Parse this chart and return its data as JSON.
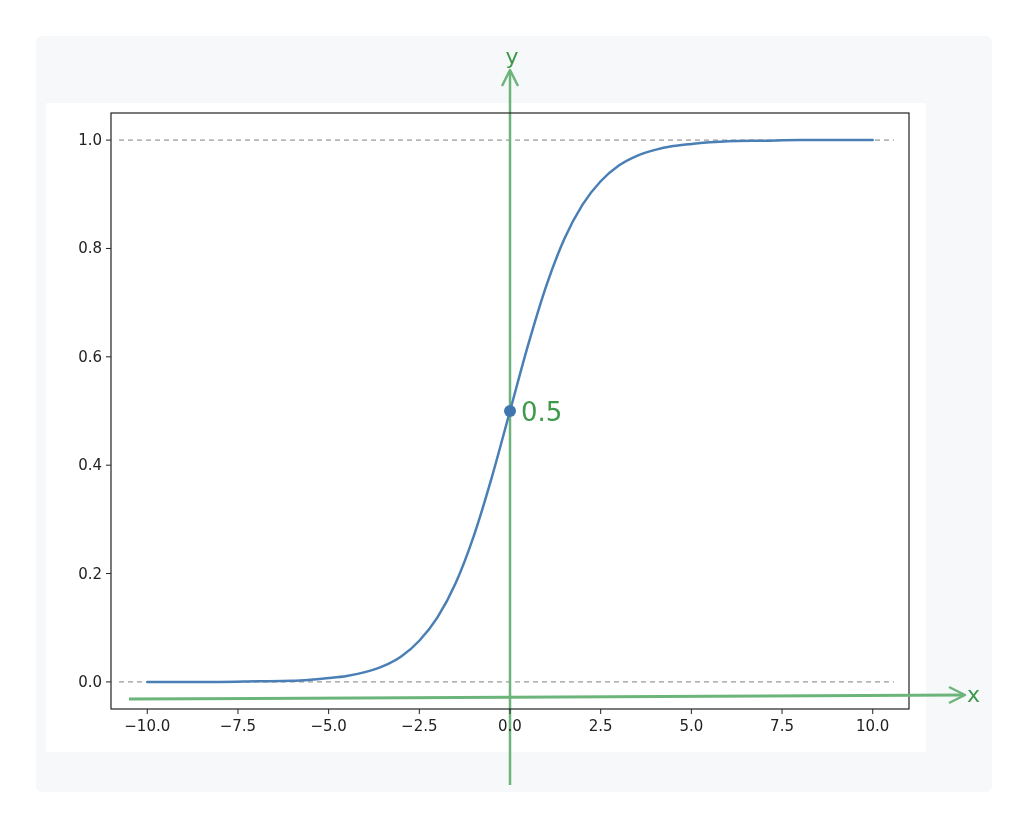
{
  "chart_data": {
    "type": "line",
    "xlabel": "x",
    "ylabel": "y",
    "xlim": [
      -11,
      11
    ],
    "ylim": [
      -0.05,
      1.05
    ],
    "xticks": [
      {
        "value": -10,
        "label": "−10.0"
      },
      {
        "value": -7.5,
        "label": "−7.5"
      },
      {
        "value": -5,
        "label": "−5.0"
      },
      {
        "value": -2.5,
        "label": "−2.5"
      },
      {
        "value": 0,
        "label": "0.0"
      },
      {
        "value": 2.5,
        "label": "2.5"
      },
      {
        "value": 5,
        "label": "5.0"
      },
      {
        "value": 7.5,
        "label": "7.5"
      },
      {
        "value": 10,
        "label": "10.0"
      }
    ],
    "yticks": [
      {
        "value": 0,
        "label": "0.0"
      },
      {
        "value": 0.2,
        "label": "0.2"
      },
      {
        "value": 0.4,
        "label": "0.4"
      },
      {
        "value": 0.6,
        "label": "0.6"
      },
      {
        "value": 0.8,
        "label": "0.8"
      },
      {
        "value": 1,
        "label": "1.0"
      }
    ],
    "grid": false,
    "series": [
      {
        "type": "line",
        "color": "#4a7fb5",
        "x": [
          -10,
          -9,
          -8,
          -7,
          -6,
          -5.5,
          -5,
          -4.5,
          -4,
          -3.5,
          -3,
          -2.5,
          -2,
          -1.5,
          -1,
          -0.5,
          0,
          0.5,
          1,
          1.5,
          2,
          2.5,
          3,
          3.5,
          4,
          4.5,
          5,
          5.5,
          6,
          7,
          8,
          9,
          10
        ],
        "values": [
          0,
          0,
          0,
          0.001,
          0.002,
          0.004,
          0.007,
          0.011,
          0.018,
          0.029,
          0.047,
          0.076,
          0.119,
          0.182,
          0.269,
          0.378,
          0.5,
          0.622,
          0.731,
          0.818,
          0.881,
          0.924,
          0.953,
          0.971,
          0.982,
          0.989,
          0.993,
          0.996,
          0.998,
          0.999,
          1,
          1,
          1
        ]
      },
      {
        "type": "scatter",
        "color": "#3f76b0",
        "x": [
          0
        ],
        "values": [
          0.5
        ],
        "marker": "circle"
      }
    ],
    "ref_lines": [
      {
        "axis": "y",
        "value": 0,
        "color": "#808080",
        "line_style": "dashed"
      },
      {
        "axis": "y",
        "value": 1,
        "color": "#808080",
        "line_style": "dashed"
      },
      {
        "axis": "x",
        "value": 0,
        "color": "#6cb57a",
        "line_style": "solid"
      }
    ],
    "annotations": [
      {
        "text": "0.5",
        "x": 0,
        "y": 0.5
      }
    ]
  }
}
